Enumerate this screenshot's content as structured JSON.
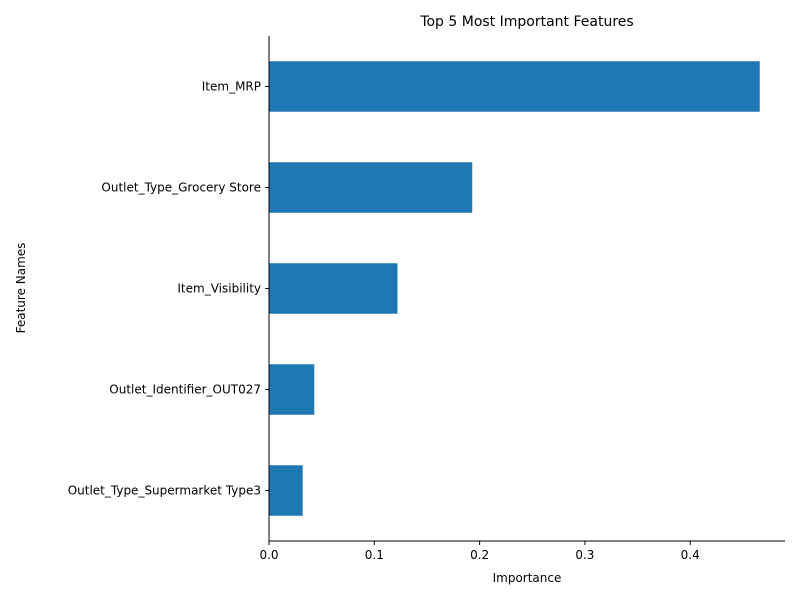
{
  "chart_data": {
    "type": "bar",
    "orientation": "horizontal",
    "title": "Top 5 Most Important Features",
    "xlabel": "Importance",
    "ylabel": "Feature Names",
    "categories": [
      "Item_MRP",
      "Outlet_Type_Grocery Store",
      "Item_Visibility",
      "Outlet_Identifier_OUT027",
      "Outlet_Type_Supermarket Type3"
    ],
    "values": [
      0.466,
      0.193,
      0.122,
      0.043,
      0.032
    ],
    "xlim": [
      0,
      0.49
    ],
    "xticks": [
      0.0,
      0.1,
      0.2,
      0.3,
      0.4
    ],
    "xtick_labels": [
      "0.0",
      "0.1",
      "0.2",
      "0.3",
      "0.4"
    ],
    "bar_color": "#1f77b4",
    "grid": false,
    "legend": "none"
  }
}
